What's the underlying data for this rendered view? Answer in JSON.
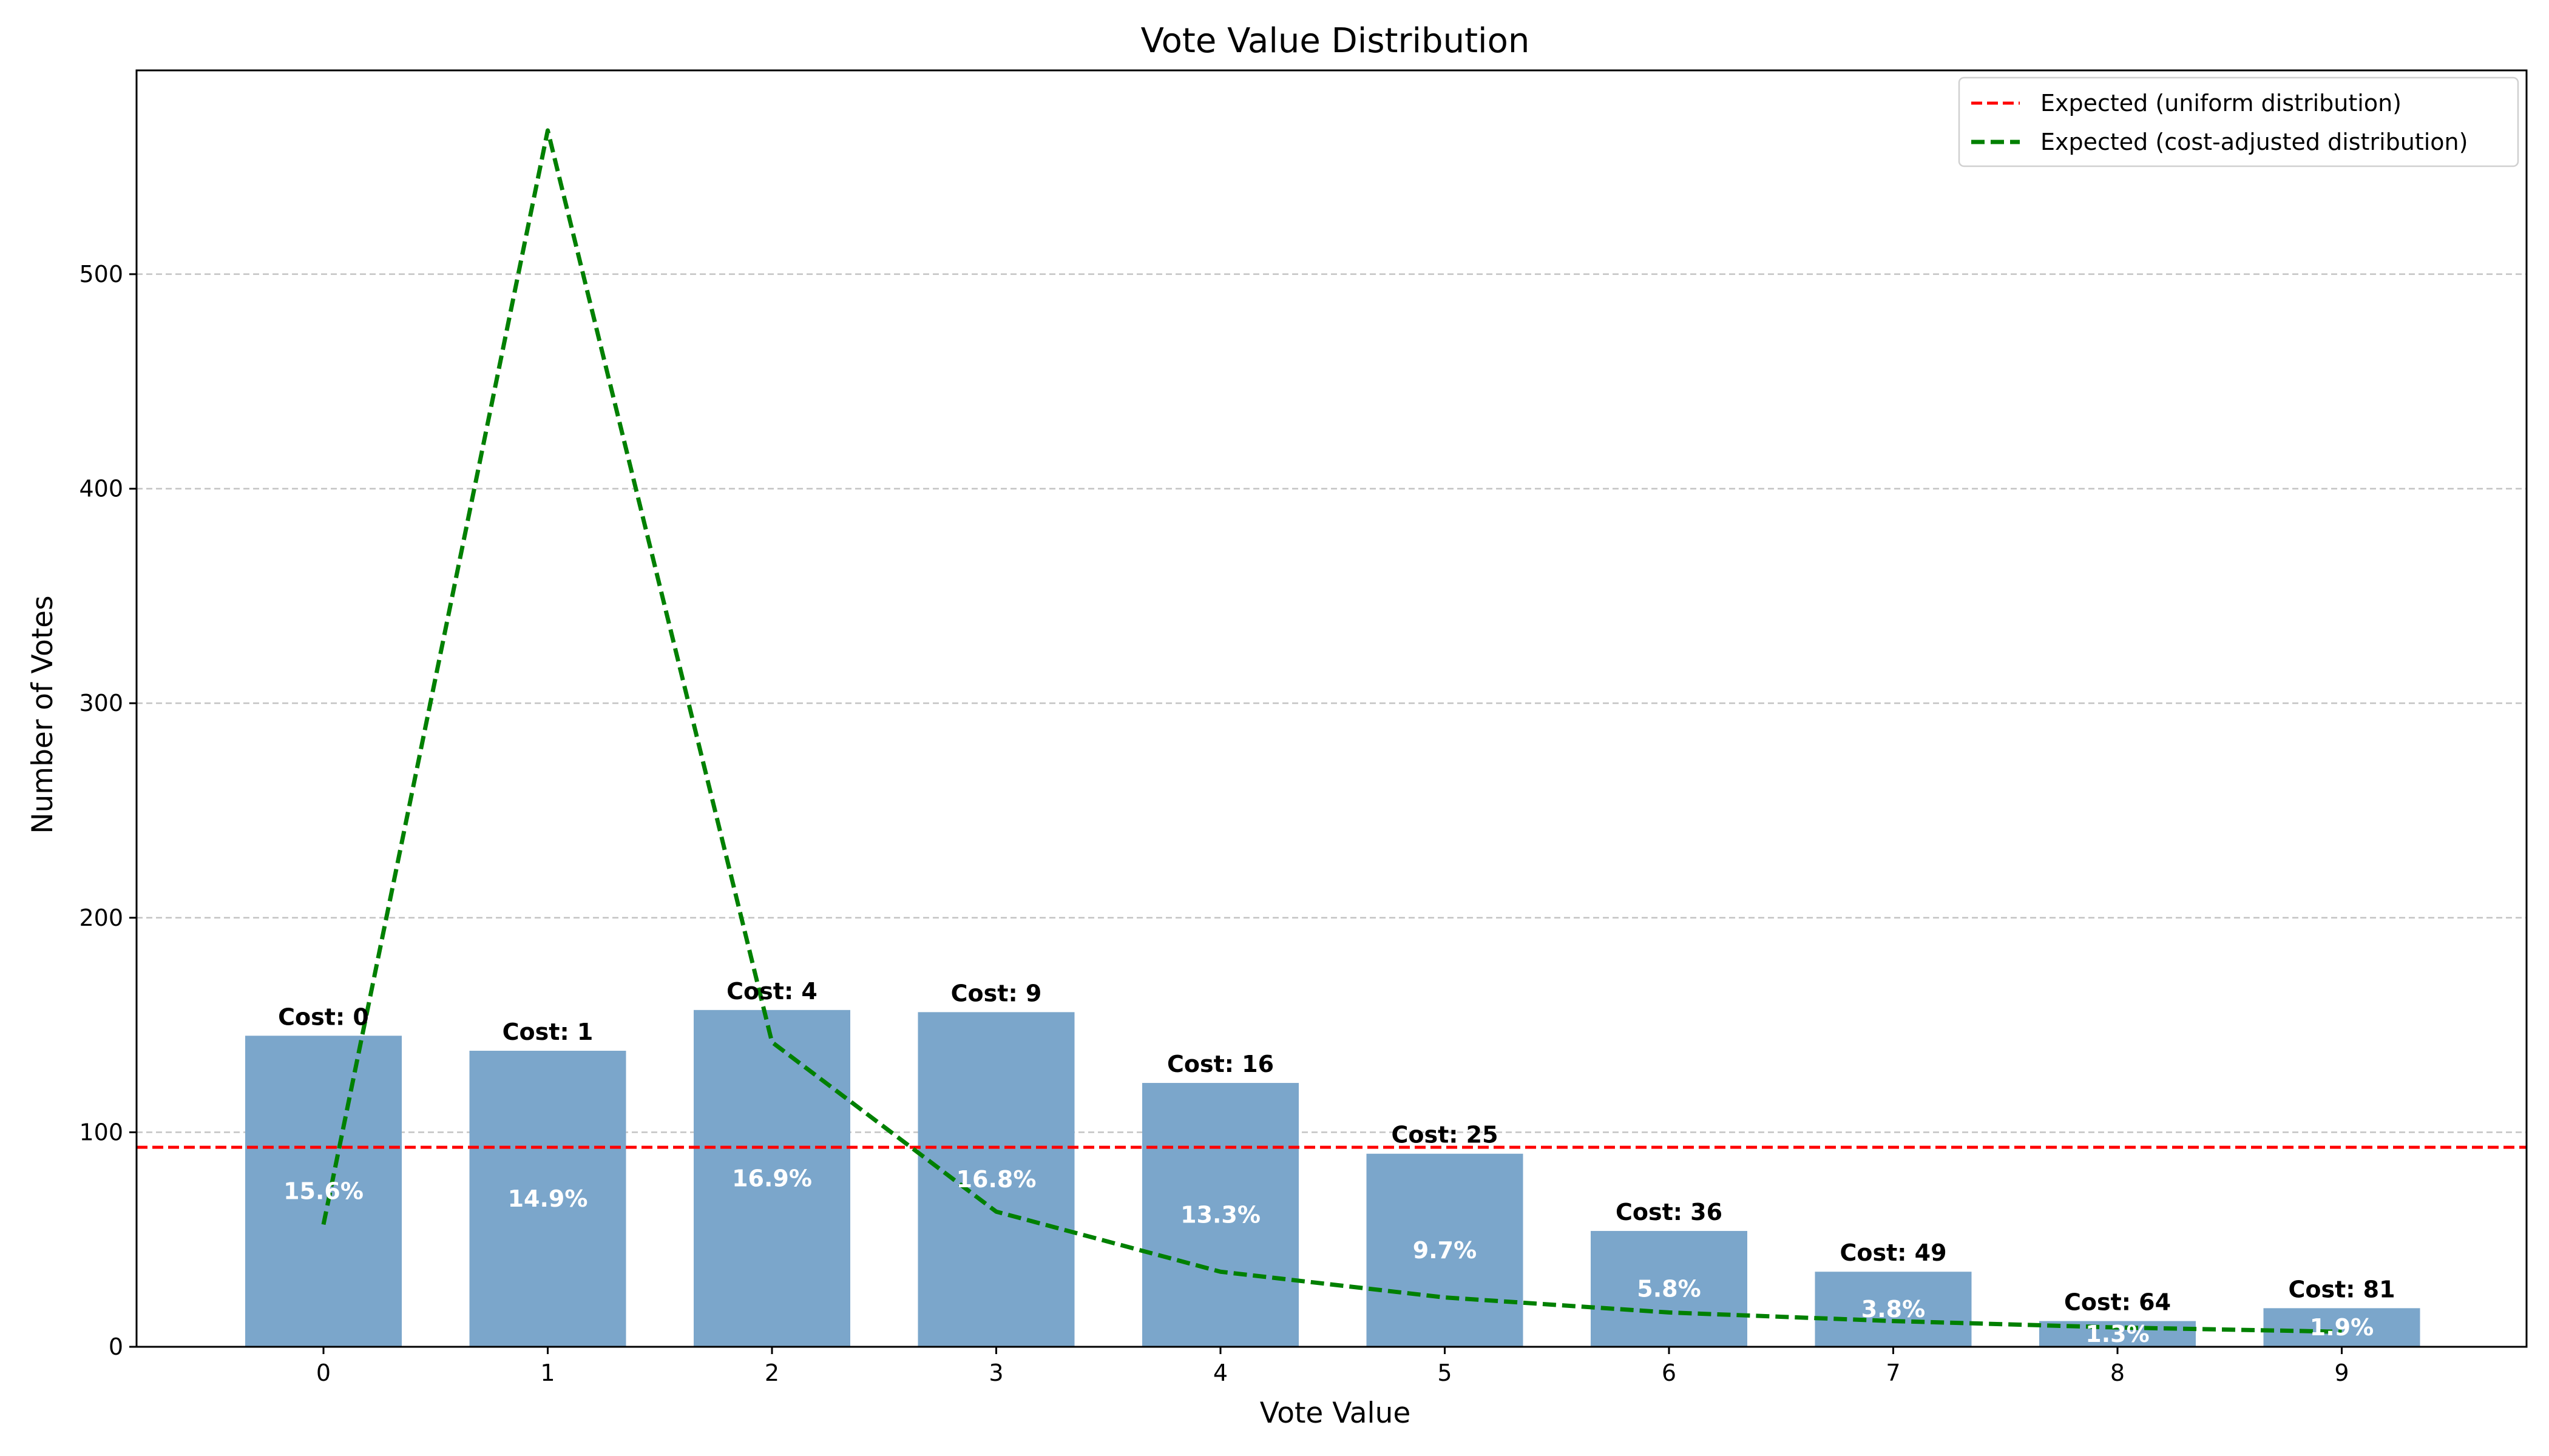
{
  "chart_data": {
    "type": "bar",
    "title": "Vote Value Distribution",
    "xlabel": "Vote Value",
    "ylabel": "Number of Votes",
    "categories": [
      "0",
      "1",
      "2",
      "3",
      "4",
      "5",
      "6",
      "7",
      "8",
      "9"
    ],
    "values": [
      145,
      138,
      157,
      156,
      123,
      90,
      54,
      35,
      12,
      18
    ],
    "cost_labels": [
      "Cost: 0",
      "Cost: 1",
      "Cost: 4",
      "Cost: 9",
      "Cost: 16",
      "Cost: 25",
      "Cost: 36",
      "Cost: 49",
      "Cost: 64",
      "Cost: 81"
    ],
    "percent_labels": [
      "15.6%",
      "14.9%",
      "16.9%",
      "16.8%",
      "13.3%",
      "9.7%",
      "5.8%",
      "3.8%",
      "1.3%",
      "1.9%"
    ],
    "reference_lines": [
      {
        "name": "Expected (uniform distribution)",
        "type": "hline",
        "value": 93,
        "color": "#ff0000",
        "style": "dashed"
      },
      {
        "name": "Expected (cost-adjusted distribution)",
        "type": "line",
        "values": [
          57,
          567,
          142,
          63,
          35,
          23,
          16,
          12,
          9,
          7
        ],
        "color": "#008000",
        "style": "dashed"
      }
    ],
    "yticks": [
      "0",
      "100",
      "200",
      "300",
      "400",
      "500"
    ],
    "ylim": [
      0,
      595
    ],
    "bar_color": "#7ba6cb",
    "grid": "y-axis dashed",
    "legend_position": "top-right"
  }
}
